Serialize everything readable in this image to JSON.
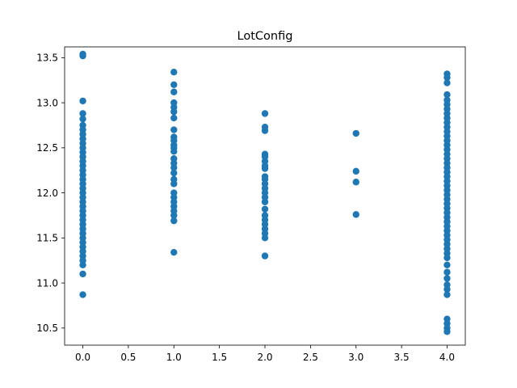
{
  "chart_data": {
    "type": "scatter",
    "title": "LotConfig",
    "xlabel": "",
    "ylabel": "",
    "xlim": [
      -0.2,
      4.2
    ],
    "ylim": [
      10.31,
      13.62
    ],
    "x_ticks": [
      0.0,
      0.5,
      1.0,
      1.5,
      2.0,
      2.5,
      3.0,
      3.5,
      4.0
    ],
    "x_tick_labels": [
      "0.0",
      "0.5",
      "1.0",
      "1.5",
      "2.0",
      "2.5",
      "3.0",
      "3.5",
      "4.0"
    ],
    "y_ticks": [
      10.5,
      11.0,
      11.5,
      12.0,
      12.5,
      13.0,
      13.5
    ],
    "y_tick_labels": [
      "10.5",
      "11.0",
      "11.5",
      "12.0",
      "12.5",
      "13.0",
      "13.5"
    ],
    "grid": false,
    "legend": "none",
    "marker_color": "#1f77b4",
    "series": [
      {
        "points": [
          {
            "x": 0,
            "y": 13.54
          },
          {
            "x": 0,
            "y": 13.52
          },
          {
            "x": 0,
            "y": 13.02
          },
          {
            "x": 0,
            "y": 12.88
          },
          {
            "x": 0,
            "y": 12.82
          },
          {
            "x": 0,
            "y": 12.75
          },
          {
            "x": 0,
            "y": 12.7
          },
          {
            "x": 0,
            "y": 12.65
          },
          {
            "x": 0,
            "y": 12.6
          },
          {
            "x": 0,
            "y": 12.55
          },
          {
            "x": 0,
            "y": 12.5
          },
          {
            "x": 0,
            "y": 12.45
          },
          {
            "x": 0,
            "y": 12.4
          },
          {
            "x": 0,
            "y": 12.35
          },
          {
            "x": 0,
            "y": 12.3
          },
          {
            "x": 0,
            "y": 12.25
          },
          {
            "x": 0,
            "y": 12.2
          },
          {
            "x": 0,
            "y": 12.15
          },
          {
            "x": 0,
            "y": 12.1
          },
          {
            "x": 0,
            "y": 12.05
          },
          {
            "x": 0,
            "y": 12.0
          },
          {
            "x": 0,
            "y": 11.95
          },
          {
            "x": 0,
            "y": 11.9
          },
          {
            "x": 0,
            "y": 11.85
          },
          {
            "x": 0,
            "y": 11.8
          },
          {
            "x": 0,
            "y": 11.75
          },
          {
            "x": 0,
            "y": 11.7
          },
          {
            "x": 0,
            "y": 11.65
          },
          {
            "x": 0,
            "y": 11.6
          },
          {
            "x": 0,
            "y": 11.55
          },
          {
            "x": 0,
            "y": 11.5
          },
          {
            "x": 0,
            "y": 11.45
          },
          {
            "x": 0,
            "y": 11.4
          },
          {
            "x": 0,
            "y": 11.35
          },
          {
            "x": 0,
            "y": 11.3
          },
          {
            "x": 0,
            "y": 11.25
          },
          {
            "x": 0,
            "y": 11.2
          },
          {
            "x": 0,
            "y": 11.1
          },
          {
            "x": 0,
            "y": 10.87
          },
          {
            "x": 1,
            "y": 13.34
          },
          {
            "x": 1,
            "y": 13.2
          },
          {
            "x": 1,
            "y": 13.12
          },
          {
            "x": 1,
            "y": 13.0
          },
          {
            "x": 1,
            "y": 12.95
          },
          {
            "x": 1,
            "y": 12.9
          },
          {
            "x": 1,
            "y": 12.83
          },
          {
            "x": 1,
            "y": 12.7
          },
          {
            "x": 1,
            "y": 12.62
          },
          {
            "x": 1,
            "y": 12.58
          },
          {
            "x": 1,
            "y": 12.53
          },
          {
            "x": 1,
            "y": 12.5
          },
          {
            "x": 1,
            "y": 12.46
          },
          {
            "x": 1,
            "y": 12.38
          },
          {
            "x": 1,
            "y": 12.33
          },
          {
            "x": 1,
            "y": 12.28
          },
          {
            "x": 1,
            "y": 12.22
          },
          {
            "x": 1,
            "y": 12.15
          },
          {
            "x": 1,
            "y": 12.1
          },
          {
            "x": 1,
            "y": 12.0
          },
          {
            "x": 1,
            "y": 11.95
          },
          {
            "x": 1,
            "y": 11.9
          },
          {
            "x": 1,
            "y": 11.85
          },
          {
            "x": 1,
            "y": 11.8
          },
          {
            "x": 1,
            "y": 11.75
          },
          {
            "x": 1,
            "y": 11.69
          },
          {
            "x": 1,
            "y": 11.34
          },
          {
            "x": 2,
            "y": 12.88
          },
          {
            "x": 2,
            "y": 12.73
          },
          {
            "x": 2,
            "y": 12.69
          },
          {
            "x": 2,
            "y": 12.43
          },
          {
            "x": 2,
            "y": 12.4
          },
          {
            "x": 2,
            "y": 12.35
          },
          {
            "x": 2,
            "y": 12.3
          },
          {
            "x": 2,
            "y": 12.27
          },
          {
            "x": 2,
            "y": 12.18
          },
          {
            "x": 2,
            "y": 12.15
          },
          {
            "x": 2,
            "y": 12.1
          },
          {
            "x": 2,
            "y": 12.05
          },
          {
            "x": 2,
            "y": 12.0
          },
          {
            "x": 2,
            "y": 11.95
          },
          {
            "x": 2,
            "y": 11.9
          },
          {
            "x": 2,
            "y": 11.82
          },
          {
            "x": 2,
            "y": 11.75
          },
          {
            "x": 2,
            "y": 11.7
          },
          {
            "x": 2,
            "y": 11.65
          },
          {
            "x": 2,
            "y": 11.6
          },
          {
            "x": 2,
            "y": 11.55
          },
          {
            "x": 2,
            "y": 11.5
          },
          {
            "x": 2,
            "y": 11.3
          },
          {
            "x": 3,
            "y": 12.66
          },
          {
            "x": 3,
            "y": 12.24
          },
          {
            "x": 3,
            "y": 12.12
          },
          {
            "x": 3,
            "y": 11.76
          },
          {
            "x": 4,
            "y": 13.32
          },
          {
            "x": 4,
            "y": 13.28
          },
          {
            "x": 4,
            "y": 13.22
          },
          {
            "x": 4,
            "y": 13.09
          },
          {
            "x": 4,
            "y": 13.03
          },
          {
            "x": 4,
            "y": 12.98
          },
          {
            "x": 4,
            "y": 12.93
          },
          {
            "x": 4,
            "y": 12.88
          },
          {
            "x": 4,
            "y": 12.83
          },
          {
            "x": 4,
            "y": 12.78
          },
          {
            "x": 4,
            "y": 12.73
          },
          {
            "x": 4,
            "y": 12.68
          },
          {
            "x": 4,
            "y": 12.63
          },
          {
            "x": 4,
            "y": 12.58
          },
          {
            "x": 4,
            "y": 12.53
          },
          {
            "x": 4,
            "y": 12.48
          },
          {
            "x": 4,
            "y": 12.43
          },
          {
            "x": 4,
            "y": 12.38
          },
          {
            "x": 4,
            "y": 12.33
          },
          {
            "x": 4,
            "y": 12.28
          },
          {
            "x": 4,
            "y": 12.23
          },
          {
            "x": 4,
            "y": 12.18
          },
          {
            "x": 4,
            "y": 12.13
          },
          {
            "x": 4,
            "y": 12.08
          },
          {
            "x": 4,
            "y": 12.03
          },
          {
            "x": 4,
            "y": 11.98
          },
          {
            "x": 4,
            "y": 11.93
          },
          {
            "x": 4,
            "y": 11.88
          },
          {
            "x": 4,
            "y": 11.83
          },
          {
            "x": 4,
            "y": 11.78
          },
          {
            "x": 4,
            "y": 11.73
          },
          {
            "x": 4,
            "y": 11.68
          },
          {
            "x": 4,
            "y": 11.63
          },
          {
            "x": 4,
            "y": 11.58
          },
          {
            "x": 4,
            "y": 11.53
          },
          {
            "x": 4,
            "y": 11.48
          },
          {
            "x": 4,
            "y": 11.43
          },
          {
            "x": 4,
            "y": 11.38
          },
          {
            "x": 4,
            "y": 11.33
          },
          {
            "x": 4,
            "y": 11.28
          },
          {
            "x": 4,
            "y": 11.2
          },
          {
            "x": 4,
            "y": 11.12
          },
          {
            "x": 4,
            "y": 11.05
          },
          {
            "x": 4,
            "y": 10.98
          },
          {
            "x": 4,
            "y": 10.93
          },
          {
            "x": 4,
            "y": 10.87
          },
          {
            "x": 4,
            "y": 10.6
          },
          {
            "x": 4,
            "y": 10.55
          },
          {
            "x": 4,
            "y": 10.5
          },
          {
            "x": 4,
            "y": 10.46
          }
        ]
      }
    ]
  }
}
